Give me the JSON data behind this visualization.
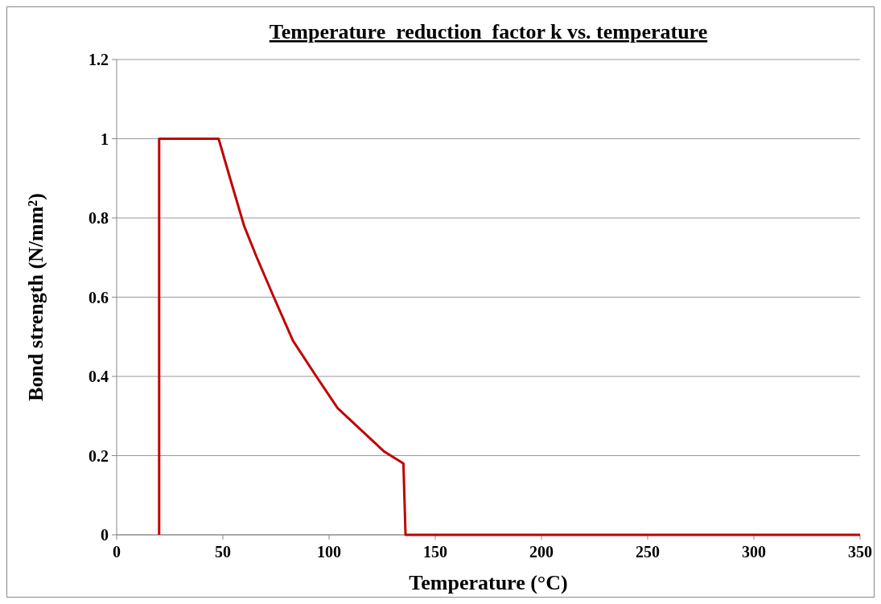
{
  "chart_data": {
    "type": "line",
    "title": "Temperature  reduction  factor k vs. temperature",
    "xlabel": "Temperature (°C)",
    "ylabel": "Bond strength (N/mm²)",
    "x": [
      20,
      20,
      48,
      53.4,
      60,
      66,
      74,
      83,
      94,
      104,
      118,
      126,
      135,
      136,
      350
    ],
    "series": [
      {
        "color": "#c00000",
        "values": [
          0,
          1,
          1,
          0.9,
          0.78,
          0.7,
          0.6,
          0.49,
          0.4,
          0.32,
          0.25,
          0.21,
          0.18,
          0,
          0
        ]
      }
    ],
    "xlim": [
      0,
      350
    ],
    "xticks": [
      0,
      50,
      100,
      150,
      200,
      250,
      300,
      350
    ],
    "ylim": [
      0,
      1.2
    ],
    "yticks": [
      0,
      0.2,
      0.4,
      0.6,
      0.8,
      1,
      1.2
    ],
    "grid": "y",
    "marker": "none",
    "line_style": "solid"
  }
}
